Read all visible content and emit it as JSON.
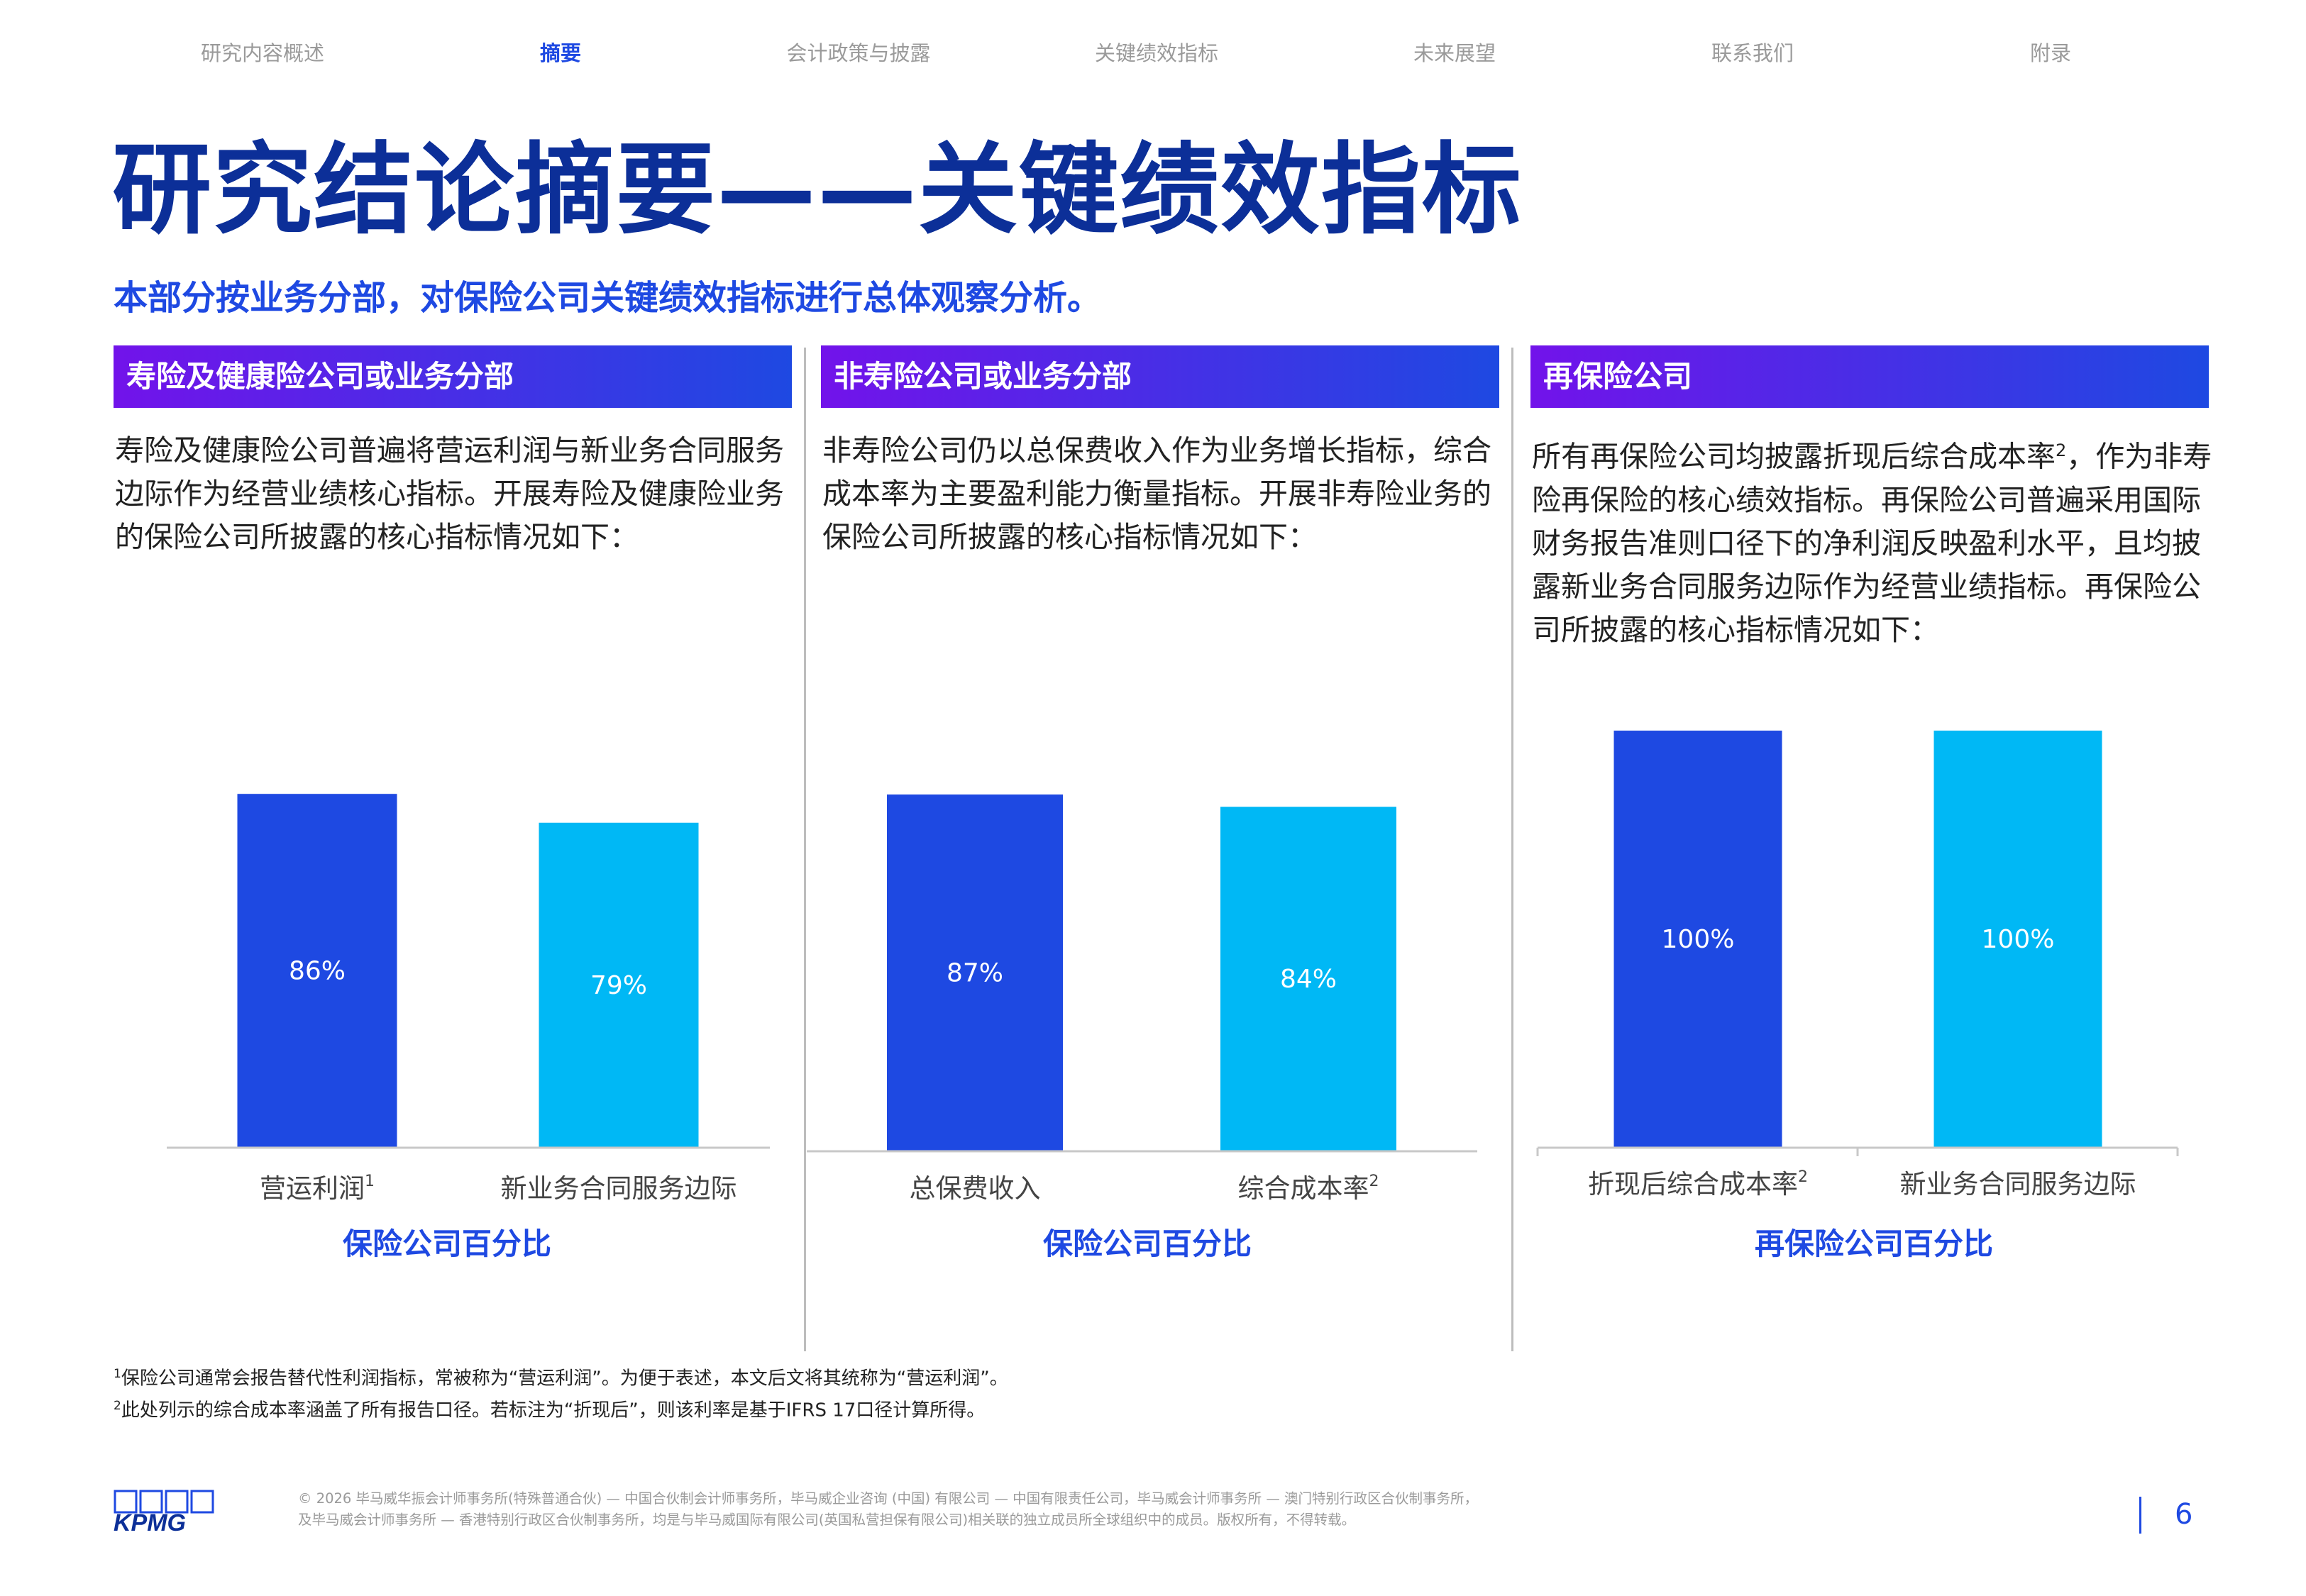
{
  "nav": {
    "items": [
      "研究内容概述",
      "摘要",
      "会计政策与披露",
      "关键绩效指标",
      "未来展望",
      "联系我们",
      "附录"
    ],
    "active_index": 1
  },
  "title": "研究结论摘要——关键绩效指标",
  "subtitle": "本部分按业务分部，对保险公司关键绩效指标进行总体观察分析。",
  "columns": [
    {
      "header": "寿险及健康险公司或业务分部",
      "body": "寿险及健康险公司普遍将营运利润与新业务合同服务边际作为经营业绩核心指标。开展寿险及健康险业务的保险公司所披露的核心指标情况如下："
    },
    {
      "header": "非寿险公司或业务分部",
      "body": "非寿险公司仍以总保费收入作为业务增长指标，综合成本率为主要盈利能力衡量指标。开展非寿险业务的保险公司所披露的核心指标情况如下："
    },
    {
      "header": "再保险公司",
      "body_before_sup": "所有再保险公司均披露折现后综合成本率",
      "body_sup": "2",
      "body_after_sup": "，作为非寿险再保险的核心绩效指标。再保险公司普遍采用国际财务报告准则口径下的净利润反映盈利水平，且均披露新业务合同服务边际作为经营业绩指标。再保险公司所披露的核心指标情况如下："
    }
  ],
  "chart_data": [
    {
      "type": "bar",
      "categories": [
        "营运利润",
        "新业务合同服务边际"
      ],
      "category_sups": [
        "1",
        ""
      ],
      "values": [
        86,
        79
      ],
      "value_labels": [
        "86%",
        "79%"
      ],
      "colors": [
        "#1e49e2",
        "#00b8f5"
      ],
      "xlabel": "保险公司百分比",
      "ylim": [
        0,
        100
      ]
    },
    {
      "type": "bar",
      "categories": [
        "总保费收入",
        "综合成本率"
      ],
      "category_sups": [
        "",
        "2"
      ],
      "values": [
        87,
        84
      ],
      "value_labels": [
        "87%",
        "84%"
      ],
      "colors": [
        "#1e49e2",
        "#00b8f5"
      ],
      "xlabel": "保险公司百分比",
      "ylim": [
        0,
        100
      ]
    },
    {
      "type": "bar",
      "categories": [
        "折现后综合成本率",
        "新业务合同服务边际"
      ],
      "category_sups": [
        "2",
        ""
      ],
      "values": [
        100,
        100
      ],
      "value_labels": [
        "100%",
        "100%"
      ],
      "colors": [
        "#1e49e2",
        "#00b8f5"
      ],
      "xlabel": "再保险公司百分比",
      "ylim": [
        0,
        100
      ]
    }
  ],
  "footnotes": [
    {
      "mark": "1",
      "text": "保险公司通常会报告替代性利润指标，常被称为“营运利润”。为便于表述，本文后文将其统称为“营运利润”。"
    },
    {
      "mark": "2",
      "text": "此处列示的综合成本率涵盖了所有报告口径。若标注为“折现后”，则该利率是基于IFRS 17口径计算所得。"
    }
  ],
  "logo_text": "KPMG",
  "copyright": [
    "© 2026 毕马威华振会计师事务所(特殊普通合伙) — 中国合伙制会计师事务所，毕马威企业咨询 (中国) 有限公司 — 中国有限责任公司，毕马威会计师事务所 — 澳门特别行政区合伙制事务所，",
    "及毕马威会计师事务所 — 香港特别行政区合伙制事务所，均是与毕马威国际有限公司(英国私营担保有限公司)相关联的独立成员所全球组织中的成员。版权所有，不得转载。"
  ],
  "page_number": "6",
  "colors": {
    "brand_dark": "#0c2f98",
    "accent": "#1e49e2",
    "light": "#00b8f5",
    "purple": "#7213ea"
  }
}
